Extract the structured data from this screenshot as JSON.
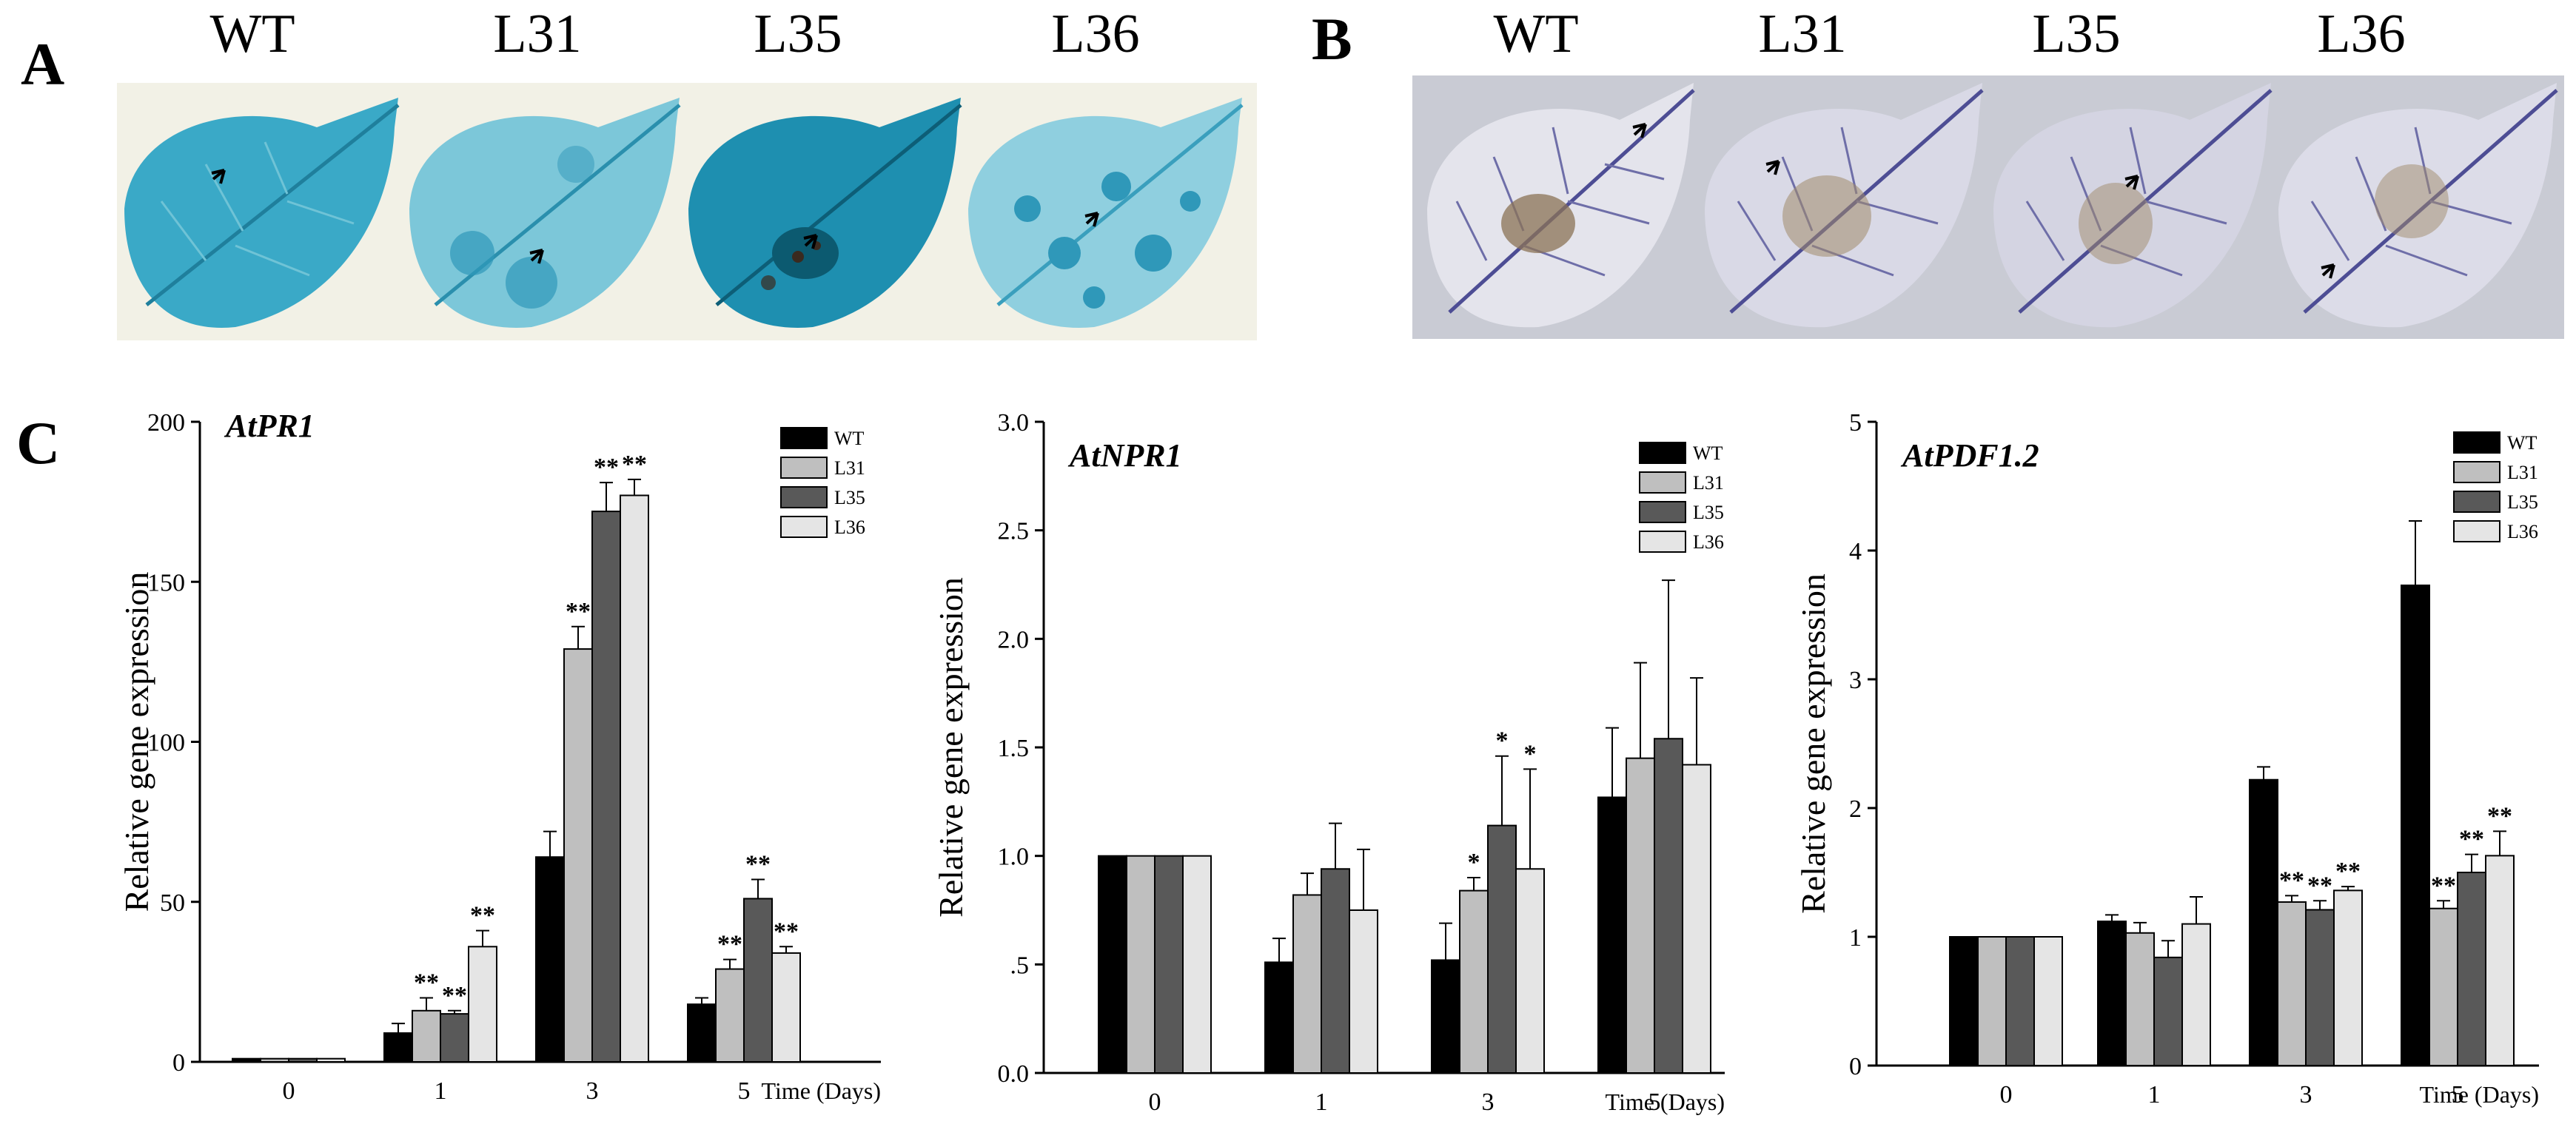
{
  "panels": {
    "a": {
      "letter": "A",
      "labels": [
        "WT",
        "L31",
        "L35",
        "L36"
      ],
      "colors": {
        "background": "#f2f1e6",
        "leaf": "#3aa9c7",
        "leaf_dark": "#1f7f9c",
        "vein": "#6fc3d6"
      }
    },
    "b": {
      "letter": "B",
      "labels": [
        "WT",
        "L31",
        "L35",
        "L36"
      ],
      "colors": {
        "background": "#c9cbd4",
        "leaf": "#e4e4ec",
        "vein": "#4d4d94",
        "lesion": "#8b7355"
      }
    },
    "c": {
      "letter": "C"
    }
  },
  "chart_data": [
    {
      "type": "bar",
      "title": "AtPR1",
      "ylabel": "Relative gene expression",
      "xlabel": "Time (Days)",
      "categories": [
        "0",
        "1",
        "3",
        "5"
      ],
      "ylim": [
        0,
        200
      ],
      "yticks": [
        0,
        50,
        100,
        150,
        200
      ],
      "ytick_labels": [
        "0",
        "50",
        "100",
        "150",
        "200"
      ],
      "series": [
        {
          "name": "WT",
          "color": "#000000",
          "values": [
            1,
            9,
            64,
            18
          ],
          "errors": [
            0,
            3,
            8,
            2
          ],
          "sig": [
            "",
            "",
            "",
            ""
          ]
        },
        {
          "name": "L31",
          "color": "#bfbfbf",
          "values": [
            1,
            16,
            129,
            29
          ],
          "errors": [
            0,
            4,
            7,
            3
          ],
          "sig": [
            "",
            "**",
            "**",
            "**"
          ]
        },
        {
          "name": "L35",
          "color": "#595959",
          "values": [
            1,
            15,
            172,
            51
          ],
          "errors": [
            0,
            1,
            9,
            6
          ],
          "sig": [
            "",
            "**",
            "**",
            "**"
          ]
        },
        {
          "name": "L36",
          "color": "#e5e5e5",
          "values": [
            1,
            36,
            177,
            34
          ],
          "errors": [
            0,
            5,
            5,
            2
          ],
          "sig": [
            "",
            "**",
            "**",
            "**"
          ]
        }
      ],
      "legend": "top-right"
    },
    {
      "type": "bar",
      "title": "AtNPR1",
      "ylabel": "Relative gene expression",
      "xlabel": "Time (Days)",
      "categories": [
        "0",
        "1",
        "3",
        "5"
      ],
      "ylim": [
        0,
        3.0
      ],
      "yticks": [
        0,
        0.5,
        1.0,
        1.5,
        2.0,
        2.5,
        3.0
      ],
      "ytick_labels": [
        "0.0",
        ".5",
        "1.0",
        "1.5",
        "2.0",
        "2.5",
        "3.0"
      ],
      "series": [
        {
          "name": "WT",
          "color": "#000000",
          "values": [
            1.0,
            0.51,
            0.52,
            1.27
          ],
          "errors": [
            0,
            0.11,
            0.17,
            0.32
          ],
          "sig": [
            "",
            "",
            "",
            ""
          ]
        },
        {
          "name": "L31",
          "color": "#bfbfbf",
          "values": [
            1.0,
            0.82,
            0.84,
            1.45
          ],
          "errors": [
            0,
            0.1,
            0.06,
            0.44
          ],
          "sig": [
            "",
            "",
            "*",
            ""
          ]
        },
        {
          "name": "L35",
          "color": "#595959",
          "values": [
            1.0,
            0.94,
            1.14,
            1.54
          ],
          "errors": [
            0,
            0.21,
            0.32,
            0.73
          ],
          "sig": [
            "",
            "",
            "*",
            ""
          ]
        },
        {
          "name": "L36",
          "color": "#e5e5e5",
          "values": [
            1.0,
            0.75,
            0.94,
            1.42
          ],
          "errors": [
            0,
            0.28,
            0.46,
            0.4
          ],
          "sig": [
            "",
            "",
            "*",
            ""
          ]
        }
      ],
      "legend": "top-right"
    },
    {
      "type": "bar",
      "title": "AtPDF1.2",
      "ylabel": "Relative gene expression",
      "xlabel": "Time (Days)",
      "categories": [
        "0",
        "1",
        "3",
        "5"
      ],
      "ylim": [
        0,
        5
      ],
      "yticks": [
        0,
        1,
        2,
        3,
        4,
        5
      ],
      "ytick_labels": [
        "0",
        "1",
        "2",
        "3",
        "4",
        "5"
      ],
      "series": [
        {
          "name": "WT",
          "color": "#000000",
          "values": [
            1.0,
            1.12,
            2.22,
            3.73
          ],
          "errors": [
            0,
            0.05,
            0.1,
            0.5
          ],
          "sig": [
            "",
            "",
            "",
            ""
          ]
        },
        {
          "name": "L31",
          "color": "#bfbfbf",
          "values": [
            1.0,
            1.03,
            1.27,
            1.22
          ],
          "errors": [
            0,
            0.08,
            0.05,
            0.06
          ],
          "sig": [
            "",
            "",
            "**",
            "**"
          ]
        },
        {
          "name": "L35",
          "color": "#595959",
          "values": [
            1.0,
            0.84,
            1.21,
            1.5
          ],
          "errors": [
            0,
            0.13,
            0.07,
            0.14
          ],
          "sig": [
            "",
            "",
            "**",
            "**"
          ]
        },
        {
          "name": "L36",
          "color": "#e5e5e5",
          "values": [
            1.0,
            1.1,
            1.36,
            1.63
          ],
          "errors": [
            0,
            0.21,
            0.03,
            0.19
          ],
          "sig": [
            "",
            "",
            "**",
            "**"
          ]
        }
      ],
      "legend": "top-right"
    }
  ]
}
